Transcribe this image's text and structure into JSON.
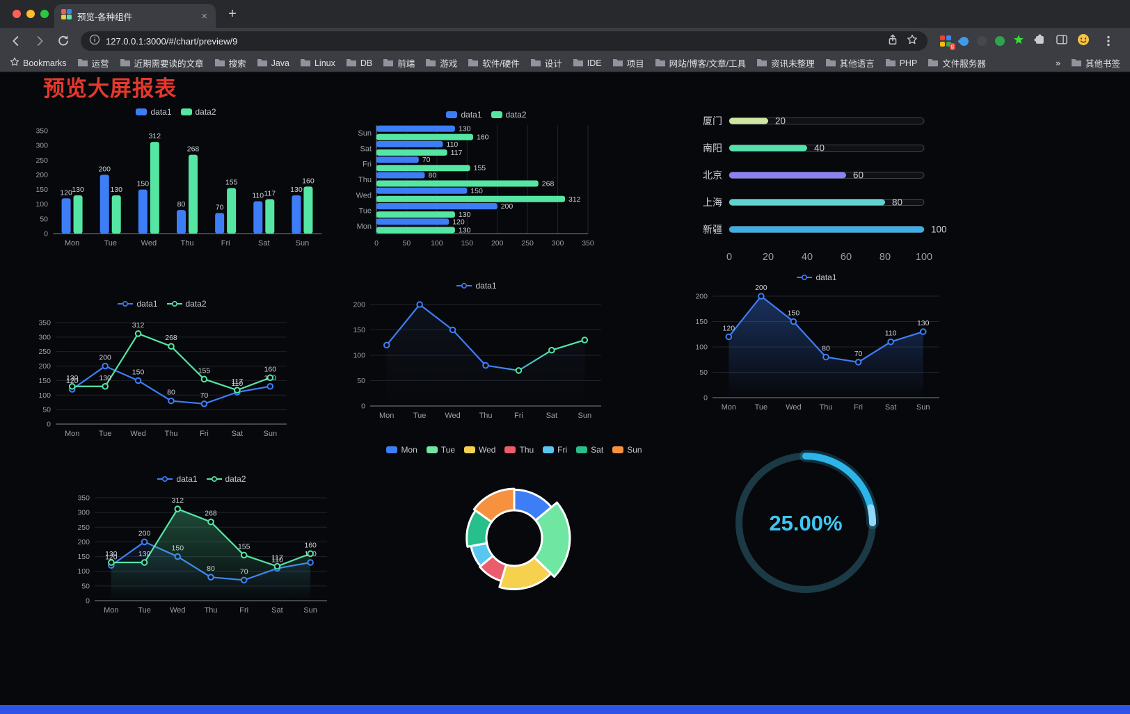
{
  "browser": {
    "tab_title": "预览-各种组件",
    "url": "127.0.0.1:3000/#/chart/preview/9",
    "close_glyph": "×",
    "newtab_glyph": "+",
    "ext_badge": "g",
    "bookmarks": [
      {
        "label": "Bookmarks",
        "icon": "star"
      },
      {
        "label": "运营",
        "icon": "folder"
      },
      {
        "label": "近期需要读的文章",
        "icon": "folder"
      },
      {
        "label": "搜索",
        "icon": "folder"
      },
      {
        "label": "Java",
        "icon": "folder"
      },
      {
        "label": "Linux",
        "icon": "folder"
      },
      {
        "label": "DB",
        "icon": "folder"
      },
      {
        "label": "前端",
        "icon": "folder"
      },
      {
        "label": "游戏",
        "icon": "folder"
      },
      {
        "label": "软件/硬件",
        "icon": "folder"
      },
      {
        "label": "设计",
        "icon": "folder"
      },
      {
        "label": "IDE",
        "icon": "folder"
      },
      {
        "label": "项目",
        "icon": "folder"
      },
      {
        "label": "网站/博客/文章/工具",
        "icon": "folder"
      },
      {
        "label": "资讯未整理",
        "icon": "folder"
      },
      {
        "label": "其他语言",
        "icon": "folder"
      },
      {
        "label": "PHP",
        "icon": "folder"
      },
      {
        "label": "文件服务器",
        "icon": "folder"
      },
      {
        "label": "»",
        "icon": "chevron"
      },
      {
        "label": "其他书签",
        "icon": "folder"
      }
    ]
  },
  "page": {
    "title": "预览大屏报表"
  },
  "chart_data": [
    {
      "type": "bar",
      "categories": [
        "Mon",
        "Tue",
        "Wed",
        "Thu",
        "Fri",
        "Sat",
        "Sun"
      ],
      "series": [
        {
          "name": "data1",
          "color": "#3D7EF7",
          "values": [
            120,
            200,
            150,
            80,
            70,
            110,
            130
          ]
        },
        {
          "name": "data2",
          "color": "#55E6A4",
          "values": [
            130,
            130,
            312,
            268,
            155,
            117,
            160
          ]
        }
      ],
      "legend": [
        {
          "label": "data1",
          "color": "#3D7EF7",
          "type": "rect"
        },
        {
          "label": "data2",
          "color": "#55E6A4",
          "type": "rect"
        }
      ],
      "ylim": [
        0,
        350
      ],
      "ystep": 50,
      "labels": true
    },
    {
      "type": "hbar",
      "categories": [
        "Mon",
        "Tue",
        "Wed",
        "Thu",
        "Fri",
        "Sat",
        "Sun"
      ],
      "series": [
        {
          "name": "data1",
          "color": "#3D7EF7",
          "values": [
            120,
            200,
            150,
            80,
            70,
            110,
            130
          ]
        },
        {
          "name": "data2",
          "color": "#55E6A4",
          "values": [
            130,
            130,
            312,
            268,
            155,
            117,
            160
          ]
        }
      ],
      "legend": [
        {
          "label": "data1",
          "color": "#3D7EF7",
          "type": "rect"
        },
        {
          "label": "data2",
          "color": "#55E6A4",
          "type": "rect"
        }
      ],
      "xlim": [
        0,
        350
      ],
      "xstep": 50,
      "labels": true
    },
    {
      "type": "progress",
      "max": 100,
      "items": [
        {
          "label": "厦门",
          "value": 20,
          "color": "#CFE6A3"
        },
        {
          "label": "南阳",
          "value": 40,
          "color": "#55E0AC"
        },
        {
          "label": "北京",
          "value": 60,
          "color": "#8C82F0"
        },
        {
          "label": "上海",
          "value": 80,
          "color": "#5FD4CE"
        },
        {
          "label": "新疆",
          "value": 100,
          "color": "#3EAEE4"
        }
      ],
      "axis": [
        0,
        20,
        40,
        60,
        80,
        100
      ]
    },
    {
      "type": "line",
      "categories": [
        "Mon",
        "Tue",
        "Wed",
        "Thu",
        "Fri",
        "Sat",
        "Sun"
      ],
      "series": [
        {
          "name": "data1",
          "color": "#3D7EF7",
          "values": [
            120,
            200,
            150,
            80,
            70,
            110,
            130
          ]
        },
        {
          "name": "data2",
          "color": "#55E6A4",
          "values": [
            130,
            130,
            312,
            268,
            155,
            117,
            160
          ]
        }
      ],
      "legend": [
        {
          "label": "data1",
          "color": "#3D7EF7",
          "type": "line"
        },
        {
          "label": "data2",
          "color": "#55E6A4",
          "type": "line"
        }
      ],
      "ylim": [
        0,
        350
      ],
      "ystep": 50,
      "labels": true
    },
    {
      "type": "line",
      "categories": [
        "Mon",
        "Tue",
        "Wed",
        "Thu",
        "Fri",
        "Sat",
        "Sun"
      ],
      "series": [
        {
          "name": "data1",
          "gradient": [
            "#3D7EF7",
            "#55E6A4"
          ],
          "values": [
            120,
            200,
            150,
            80,
            70,
            110,
            130
          ],
          "areaColor": "#4A6FB8",
          "areaOpacity": 0.1
        }
      ],
      "legend": [
        {
          "label": "data1",
          "color": "#3D7EF7",
          "type": "line"
        }
      ],
      "ylim": [
        0,
        200
      ],
      "ystep": 50,
      "labels": false
    },
    {
      "type": "line",
      "categories": [
        "Mon",
        "Tue",
        "Wed",
        "Thu",
        "Fri",
        "Sat",
        "Sun"
      ],
      "series": [
        {
          "name": "data1",
          "color": "#3D7EF7",
          "values": [
            120,
            200,
            150,
            80,
            70,
            110,
            130
          ],
          "areaColor": "#3D7EF7",
          "areaOpacity": 0.35
        }
      ],
      "legend": [
        {
          "label": "data1",
          "color": "#3D7EF7",
          "type": "line"
        }
      ],
      "ylim": [
        0,
        200
      ],
      "ystep": 50,
      "labels": true
    },
    {
      "type": "line",
      "categories": [
        "Mon",
        "Tue",
        "Wed",
        "Thu",
        "Fri",
        "Sat",
        "Sun"
      ],
      "series": [
        {
          "name": "data1",
          "color": "#3D7EF7",
          "values": [
            120,
            200,
            150,
            80,
            70,
            110,
            130
          ],
          "areaColor": "#3D7EF7",
          "areaOpacity": 0.12
        },
        {
          "name": "data2",
          "color": "#55E6A4",
          "values": [
            130,
            130,
            312,
            268,
            155,
            117,
            160
          ],
          "areaColor": "#55E6A4",
          "areaOpacity": 0.3
        }
      ],
      "legend": [
        {
          "label": "data1",
          "color": "#3D7EF7",
          "type": "line"
        },
        {
          "label": "data2",
          "color": "#55E6A4",
          "type": "line"
        }
      ],
      "ylim": [
        0,
        350
      ],
      "ystep": 50,
      "labels": true
    },
    {
      "type": "donut",
      "items": [
        {
          "label": "Mon",
          "value": 120,
          "color": "#3D7EF7"
        },
        {
          "label": "Tue",
          "value": 200,
          "color": "#70E6A3"
        },
        {
          "label": "Wed",
          "value": 150,
          "color": "#F6D14E"
        },
        {
          "label": "Thu",
          "value": 80,
          "color": "#EA5C6E"
        },
        {
          "label": "Fri",
          "value": 70,
          "color": "#59C6EF"
        },
        {
          "label": "Sat",
          "value": 110,
          "color": "#27BF8C"
        },
        {
          "label": "Sun",
          "value": 130,
          "color": "#F6923F"
        }
      ]
    },
    {
      "type": "gauge",
      "value": 25,
      "display": "25.00%",
      "color": "#2CB5E8",
      "track": "#1B3A46",
      "text_color": "#3FC6F2"
    }
  ]
}
